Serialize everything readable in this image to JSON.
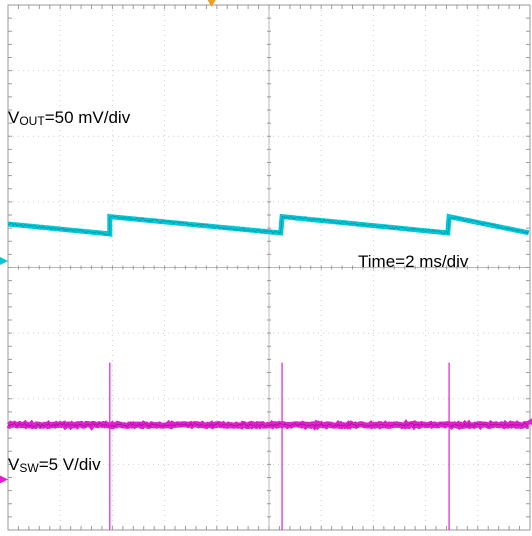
{
  "chart_data": {
    "type": "line",
    "title": "",
    "grid": true,
    "annotations": {
      "vout": {
        "prefix": "V",
        "sub": "OUT",
        "suffix": "=50 mV/div"
      },
      "time": "Time=2 ms/div",
      "vsw": {
        "prefix": "V",
        "sub": "SW",
        "suffix": "=5 V/div"
      }
    },
    "time_per_div_ms": 2,
    "xlim_ms": [
      0,
      20
    ],
    "trigger_time_ms": 7.8,
    "series": [
      {
        "channel": "VOUT",
        "scale": "50 mV/div",
        "color": "#00c8d8",
        "level_div": 3.35,
        "sawtooth_step_mV": 12.5,
        "sawtooth_droop_mV": 12.5,
        "step_times_ms": [
          3.9,
          10.5,
          16.9
        ],
        "marker_color": "#00c8d8"
      },
      {
        "channel": "VSW",
        "scale": "5 V/div",
        "color": "#e020d0",
        "level_div": 6.4,
        "pulse_times_ms": [
          3.9,
          10.5,
          16.9
        ],
        "pulse_top_div": 5.45,
        "pulse_bottom_div": 8.0,
        "marker_color": "#e020d0"
      }
    ],
    "trigger_marker_color": "#f0a020"
  }
}
